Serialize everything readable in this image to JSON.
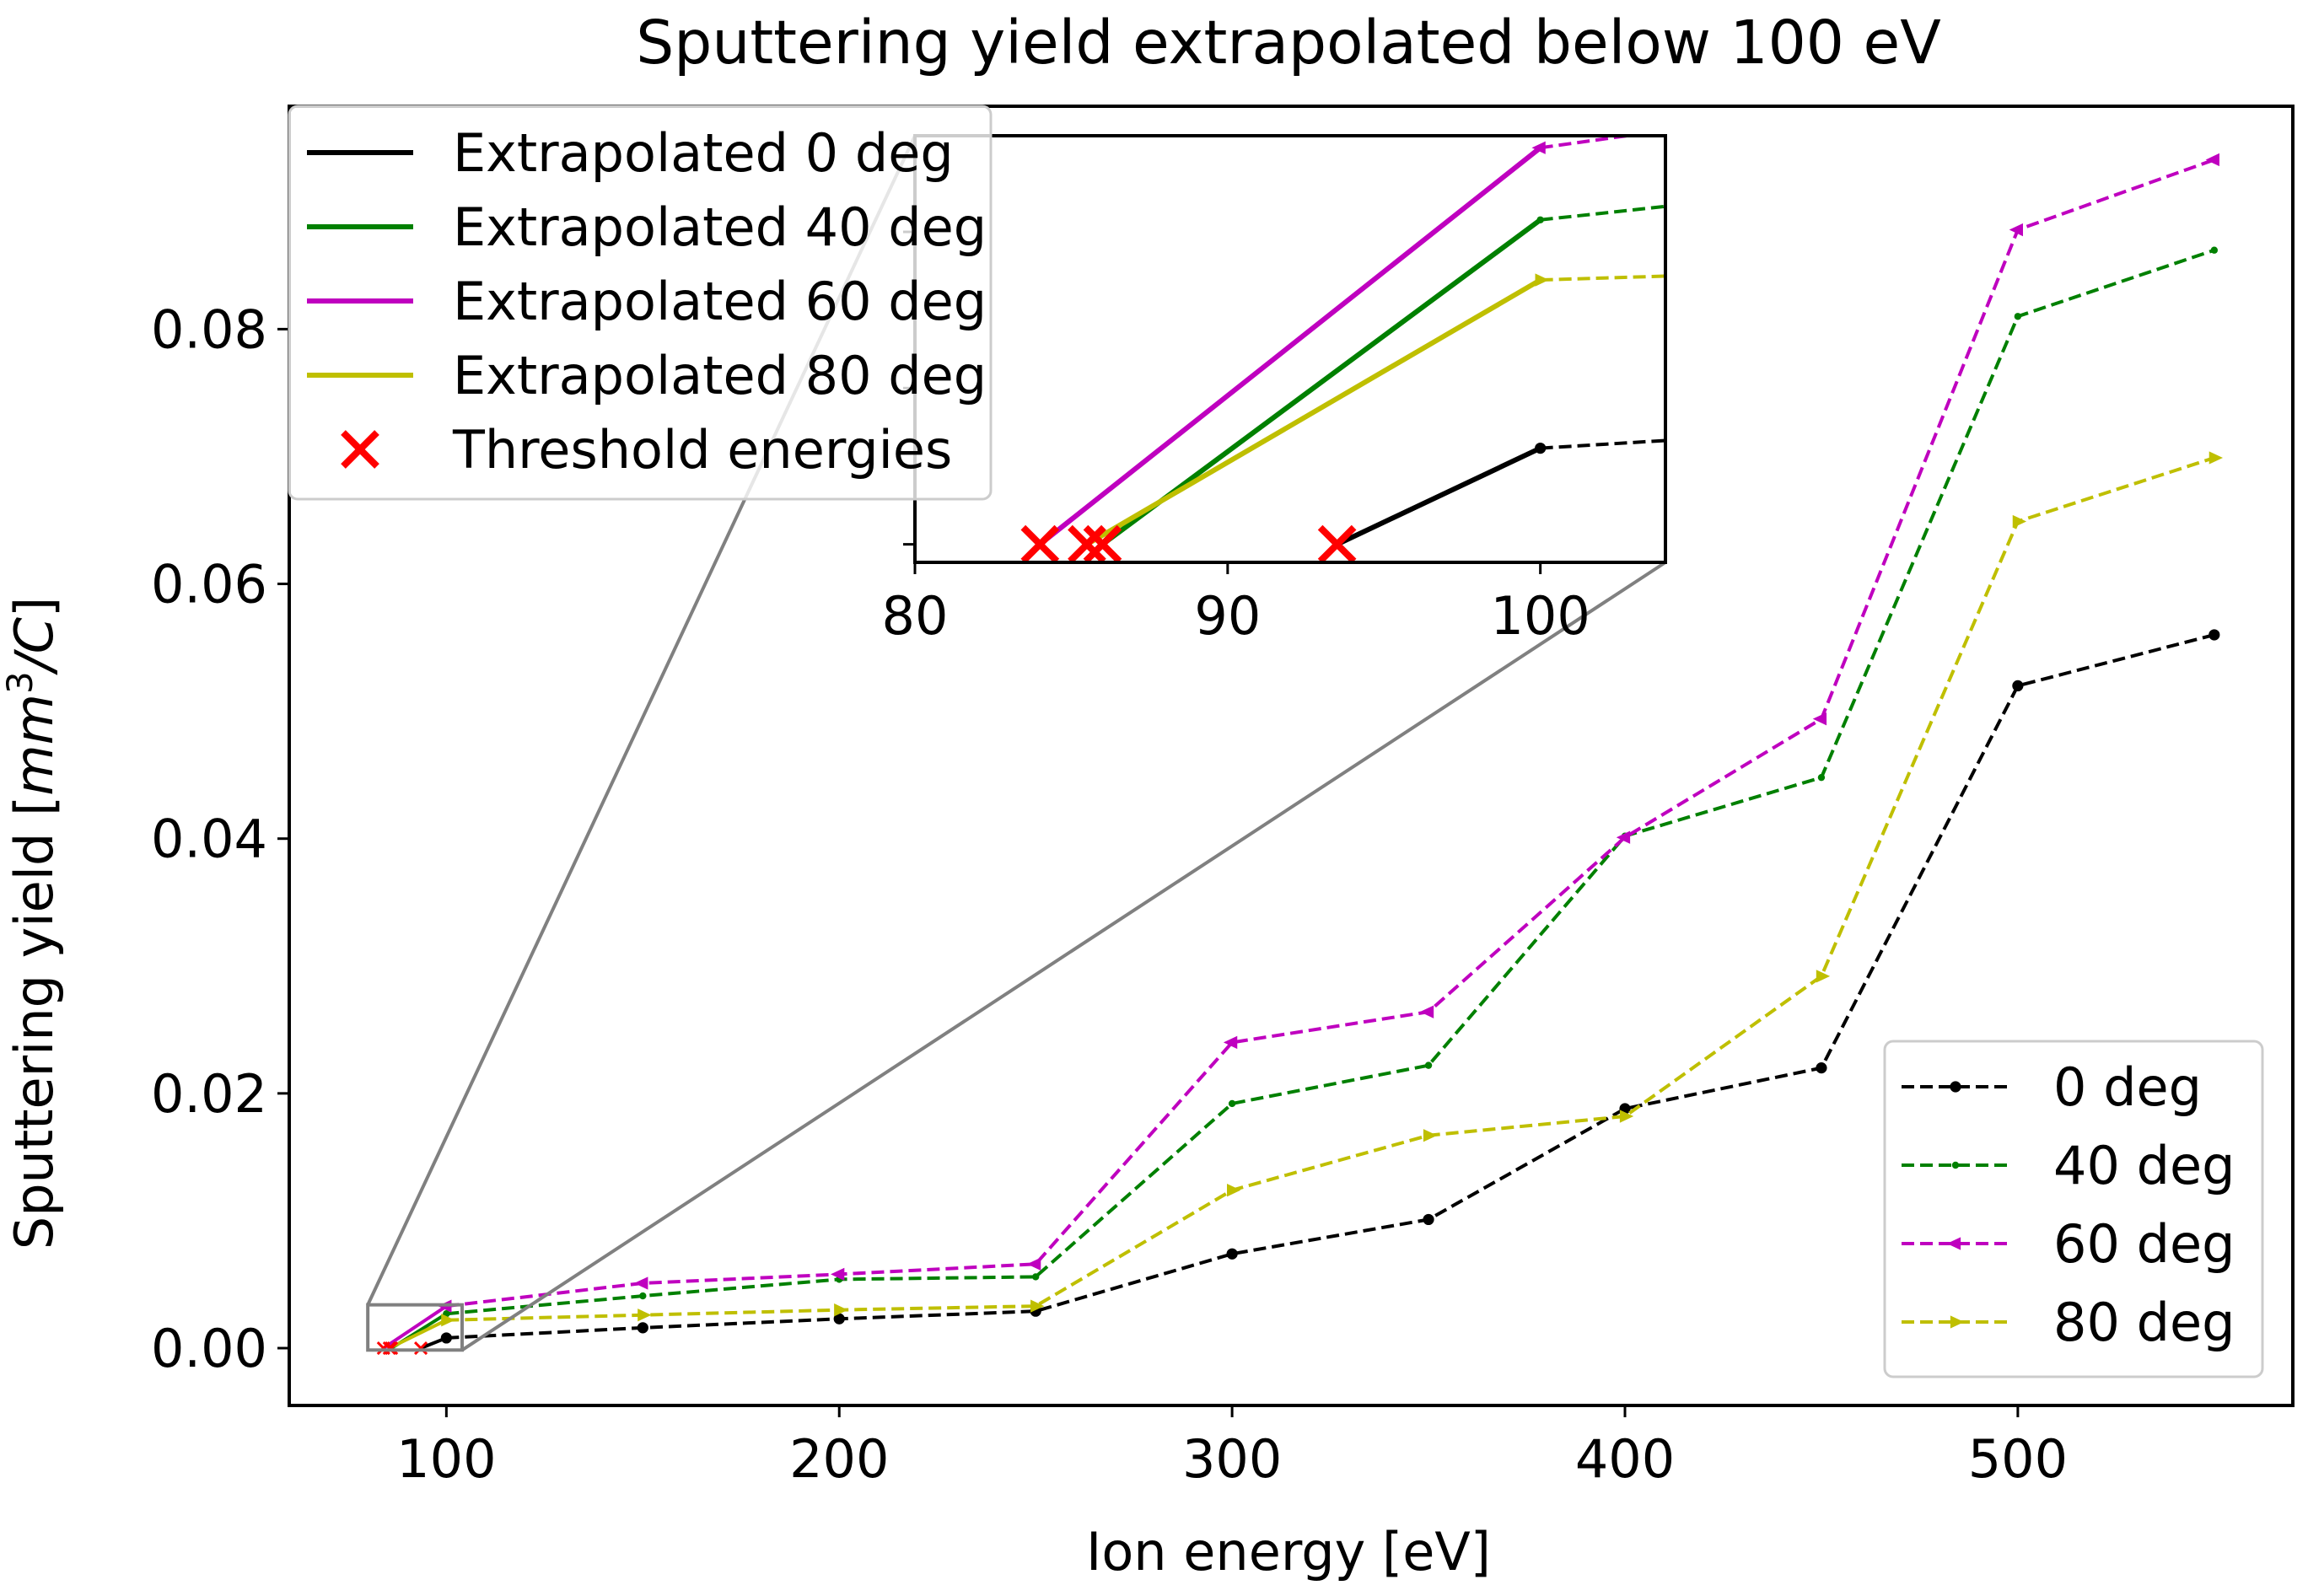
{
  "chart_data": {
    "type": "line",
    "title": "Sputtering yield extrapolated below 100 eV",
    "xlabel": "Ion energy [eV]",
    "ylabel_prefix": "Sputtering yield [",
    "ylabel_math": "mm",
    "ylabel_sup": "3",
    "ylabel_suffix_math": "/C",
    "ylabel_close": "]",
    "xlim": [
      60,
      570
    ],
    "ylim": [
      -0.0045,
      0.0975
    ],
    "xticks": [
      100,
      200,
      300,
      400,
      500
    ],
    "xtick_labels": [
      "100",
      "200",
      "300",
      "400",
      "500"
    ],
    "yticks": [
      0.0,
      0.02,
      0.04,
      0.06,
      0.08
    ],
    "ytick_labels": [
      "0.00",
      "0.02",
      "0.04",
      "0.06",
      "0.08"
    ],
    "grid": false,
    "series": [
      {
        "name": "0 deg",
        "color": "#000000",
        "marker": "circle",
        "x": [
          100,
          150,
          200,
          250,
          300,
          350,
          400,
          450,
          500,
          550
        ],
        "values": [
          0.0008,
          0.0016,
          0.0023,
          0.0029,
          0.0074,
          0.0101,
          0.0188,
          0.022,
          0.052,
          0.056
        ]
      },
      {
        "name": "40 deg",
        "color": "#008000",
        "marker": "point",
        "x": [
          100,
          150,
          200,
          250,
          300,
          350,
          400,
          450,
          500,
          550
        ],
        "values": [
          0.0027,
          0.0041,
          0.0054,
          0.0056,
          0.0192,
          0.0222,
          0.0402,
          0.0448,
          0.081,
          0.0862
        ]
      },
      {
        "name": "60 deg",
        "color": "#bf00bf",
        "marker": "triangle-left",
        "x": [
          100,
          150,
          200,
          250,
          300,
          350,
          400,
          450,
          500,
          550
        ],
        "values": [
          0.0033,
          0.0051,
          0.0058,
          0.0066,
          0.024,
          0.0264,
          0.0401,
          0.0494,
          0.0878,
          0.0933
        ]
      },
      {
        "name": "80 deg",
        "color": "#bfbf00",
        "marker": "triangle-right",
        "x": [
          100,
          150,
          200,
          250,
          300,
          350,
          400,
          450,
          500,
          550
        ],
        "values": [
          0.0022,
          0.0026,
          0.003,
          0.0033,
          0.0124,
          0.0167,
          0.0182,
          0.0292,
          0.0649,
          0.0699
        ]
      }
    ],
    "extrapolated": [
      {
        "name": "Extrapolated 0 deg",
        "color": "#000000",
        "x": [
          93.5,
          100
        ],
        "values": [
          0.0,
          0.0008
        ]
      },
      {
        "name": "Extrapolated 40 deg",
        "color": "#008000",
        "x": [
          86,
          100
        ],
        "values": [
          0.0,
          0.0027
        ]
      },
      {
        "name": "Extrapolated 60 deg",
        "color": "#bf00bf",
        "x": [
          84,
          100
        ],
        "values": [
          0.0,
          0.0033
        ]
      },
      {
        "name": "Extrapolated 80 deg",
        "color": "#bfbf00",
        "x": [
          85.5,
          100
        ],
        "values": [
          0.0,
          0.0022
        ]
      }
    ],
    "thresholds": {
      "name": "Threshold energies",
      "color": "#ff0000",
      "x": [
        93.5,
        86,
        84,
        85.5
      ],
      "values": [
        0.0,
        0.0,
        0.0,
        0.0
      ]
    },
    "inset": {
      "xlim": [
        80,
        104
      ],
      "ylim": [
        -0.00015,
        0.0034
      ],
      "xticks": [
        80,
        90,
        100
      ],
      "xtick_labels": [
        "80",
        "90",
        "100"
      ],
      "ytick_values": [
        0.0,
        0.0013,
        0.0026
      ]
    },
    "legend_main_position": "upper-left",
    "legend_series_position": "lower-right"
  }
}
